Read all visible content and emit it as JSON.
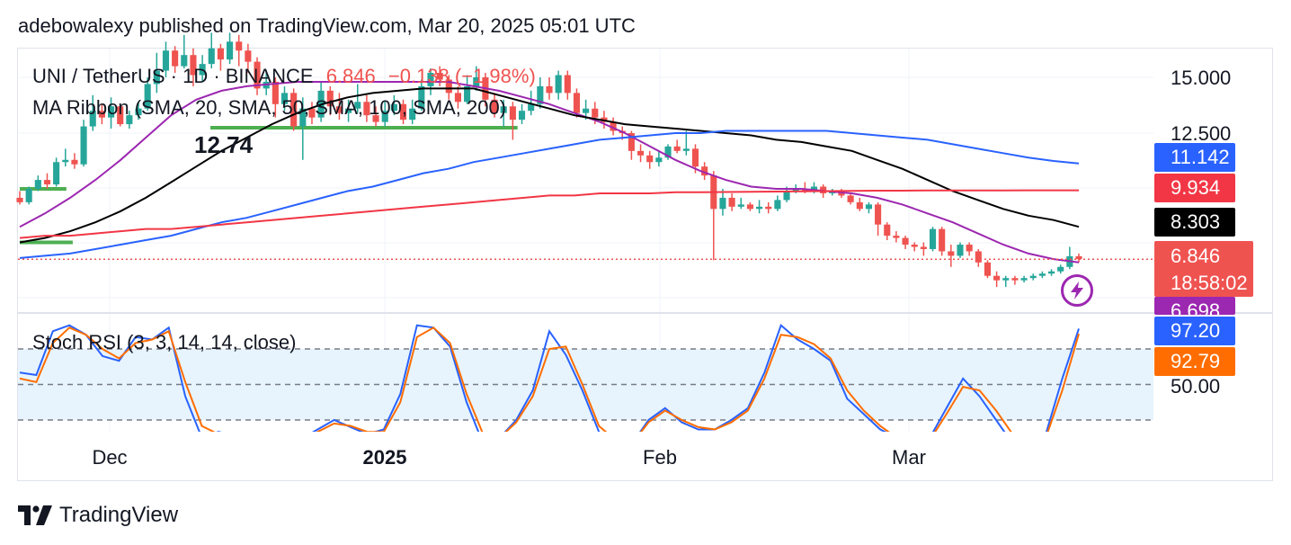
{
  "header": {
    "text": "adebowalexy published on TradingView.com, Mar 20, 2025 05:01 UTC"
  },
  "legend": {
    "symbol": "UNI / TetherUS · 1D · BINANCE",
    "price": "6.846",
    "change": "−0.138 (−1.98%)",
    "ma_ribbon": "MA Ribbon (SMA, 20, SMA, 50, SMA, 100, SMA, 200)",
    "stoch": "Stoch RSI (3, 3, 14, 14, close)"
  },
  "annotation": {
    "level_label": "12.74"
  },
  "price_axis": {
    "ticks": [
      "15.000",
      "12.500"
    ]
  },
  "badges": {
    "sma100": "11.142",
    "sma200": "9.934",
    "sma50": "8.303",
    "last_price": "6.846",
    "countdown": "18:58:02",
    "sma20": "6.698",
    "k": "97.20",
    "d": "92.79"
  },
  "rsi_axis": {
    "tick": "50.00"
  },
  "time_axis": {
    "labels": [
      "Dec",
      "2025",
      "Feb",
      "Mar"
    ]
  },
  "footer": {
    "brand": "TradingView",
    "logo_icon": "tradingview-logo-icon"
  },
  "colors": {
    "up": "#26a69a",
    "down": "#ef5350",
    "sma20": "#9c27b0",
    "sma50": "#000000",
    "sma100": "#2962ff",
    "sma200": "#f23645",
    "k_line": "#2962ff",
    "d_line": "#ff6d00",
    "support_line": "#4caf50"
  },
  "chart_data": [
    {
      "type": "candlestick",
      "title": "UNI / TetherUS · 1D · BINANCE",
      "price_range": [
        5.0,
        15.0
      ],
      "last_price": 6.846,
      "candles": [
        [
          9.6,
          9.4,
          9.9,
          9.3
        ],
        [
          9.4,
          10.0,
          10.1,
          9.3
        ],
        [
          10.0,
          10.4,
          10.6,
          9.9
        ],
        [
          10.4,
          10.2,
          10.7,
          10.0
        ],
        [
          10.2,
          11.2,
          11.4,
          10.1
        ],
        [
          11.2,
          11.3,
          11.8,
          11.0
        ],
        [
          11.3,
          11.1,
          11.6,
          10.9
        ],
        [
          11.1,
          12.8,
          13.1,
          11.0
        ],
        [
          12.8,
          13.5,
          14.2,
          12.6
        ],
        [
          13.5,
          13.2,
          13.8,
          12.9
        ],
        [
          13.2,
          13.7,
          14.1,
          12.7
        ],
        [
          13.7,
          12.9,
          13.8,
          12.8
        ],
        [
          12.9,
          13.3,
          13.5,
          12.7
        ],
        [
          13.3,
          13.6,
          13.9,
          13.1
        ],
        [
          13.6,
          14.7,
          15.0,
          13.5
        ],
        [
          14.7,
          15.3,
          16.1,
          14.3
        ],
        [
          15.3,
          16.2,
          16.6,
          15.0
        ],
        [
          16.2,
          15.5,
          16.4,
          15.2
        ],
        [
          15.5,
          16.0,
          16.9,
          15.4
        ],
        [
          16.0,
          15.1,
          16.3,
          14.6
        ],
        [
          15.1,
          15.6,
          16.0,
          14.8
        ],
        [
          15.6,
          16.3,
          17.0,
          15.4
        ],
        [
          16.3,
          15.8,
          16.5,
          15.3
        ],
        [
          15.8,
          16.6,
          17.0,
          15.6
        ],
        [
          16.6,
          16.2,
          16.9,
          15.5
        ],
        [
          16.2,
          15.7,
          16.5,
          15.2
        ],
        [
          15.7,
          14.5,
          15.9,
          14.2
        ],
        [
          14.5,
          14.8,
          15.3,
          14.2
        ],
        [
          14.8,
          13.8,
          15.0,
          13.2
        ],
        [
          13.8,
          14.3,
          14.6,
          13.5
        ],
        [
          14.3,
          12.8,
          14.5,
          12.6
        ],
        [
          12.8,
          13.6,
          14.1,
          11.3
        ],
        [
          13.6,
          13.2,
          13.9,
          12.9
        ],
        [
          13.2,
          14.4,
          14.8,
          13.0
        ],
        [
          14.4,
          13.7,
          14.6,
          13.3
        ],
        [
          13.7,
          13.4,
          14.3,
          13.1
        ],
        [
          13.4,
          13.6,
          14.0,
          13.0
        ],
        [
          13.6,
          13.9,
          14.7,
          13.4
        ],
        [
          13.9,
          13.3,
          14.2,
          13.0
        ],
        [
          13.3,
          13.0,
          13.7,
          12.8
        ],
        [
          13.0,
          13.5,
          13.9,
          12.8
        ],
        [
          13.5,
          13.8,
          14.2,
          13.3
        ],
        [
          13.8,
          13.1,
          14.0,
          12.9
        ],
        [
          13.1,
          13.6,
          14.0,
          12.9
        ],
        [
          13.6,
          14.6,
          14.9,
          13.5
        ],
        [
          14.6,
          15.2,
          15.4,
          14.2
        ],
        [
          15.2,
          14.9,
          15.5,
          14.6
        ],
        [
          14.9,
          14.3,
          15.1,
          14.0
        ],
        [
          14.3,
          13.9,
          14.6,
          13.6
        ],
        [
          13.9,
          14.6,
          15.1,
          13.8
        ],
        [
          14.6,
          15.0,
          15.5,
          14.4
        ],
        [
          15.0,
          14.0,
          15.2,
          13.7
        ],
        [
          14.0,
          13.4,
          14.3,
          13.2
        ],
        [
          13.4,
          13.7,
          14.0,
          12.8
        ],
        [
          13.7,
          13.1,
          13.9,
          12.2
        ],
        [
          13.1,
          13.5,
          13.8,
          12.9
        ],
        [
          13.5,
          13.8,
          14.4,
          13.3
        ],
        [
          13.8,
          14.6,
          15.0,
          13.6
        ],
        [
          14.6,
          14.3,
          15.0,
          14.0
        ],
        [
          14.3,
          15.1,
          15.3,
          14.0
        ],
        [
          15.1,
          14.3,
          15.3,
          14.0
        ],
        [
          14.3,
          13.4,
          14.5,
          13.2
        ],
        [
          13.4,
          13.6,
          14.0,
          13.1
        ],
        [
          13.6,
          13.2,
          13.9,
          12.9
        ],
        [
          13.2,
          13.0,
          13.5,
          12.7
        ],
        [
          13.0,
          12.6,
          13.2,
          12.4
        ],
        [
          12.6,
          12.5,
          12.8,
          12.2
        ],
        [
          12.5,
          11.7,
          12.6,
          11.3
        ],
        [
          11.7,
          11.5,
          12.0,
          11.2
        ],
        [
          11.5,
          11.2,
          11.7,
          10.9
        ],
        [
          11.2,
          11.4,
          11.7,
          11.0
        ],
        [
          11.4,
          11.9,
          12.0,
          11.3
        ],
        [
          11.9,
          11.7,
          12.2,
          11.6
        ],
        [
          11.7,
          11.8,
          12.6,
          11.5
        ],
        [
          11.8,
          11.0,
          12.0,
          10.7
        ],
        [
          11.0,
          10.6,
          11.2,
          10.4
        ],
        [
          10.6,
          9.1,
          10.8,
          6.8
        ],
        [
          9.1,
          9.6,
          10.0,
          8.8
        ],
        [
          9.6,
          9.2,
          9.8,
          9.0
        ],
        [
          9.2,
          9.3,
          9.6,
          9.1
        ],
        [
          9.3,
          9.1,
          9.4,
          9.0
        ],
        [
          9.1,
          9.2,
          9.5,
          8.9
        ],
        [
          9.2,
          9.1,
          9.4,
          8.9
        ],
        [
          9.1,
          9.5,
          9.7,
          9.0
        ],
        [
          9.5,
          9.9,
          10.1,
          9.4
        ],
        [
          9.9,
          10.0,
          10.2,
          9.8
        ],
        [
          10.0,
          9.9,
          10.3,
          9.8
        ],
        [
          9.9,
          10.1,
          10.3,
          9.8
        ],
        [
          10.1,
          9.8,
          10.2,
          9.6
        ],
        [
          9.8,
          9.9,
          10.0,
          9.7
        ],
        [
          9.9,
          9.7,
          10.0,
          9.6
        ],
        [
          9.7,
          9.4,
          9.8,
          9.3
        ],
        [
          9.4,
          9.1,
          9.6,
          9.0
        ],
        [
          9.1,
          9.3,
          9.4,
          8.9
        ],
        [
          9.3,
          8.4,
          9.4,
          7.9
        ],
        [
          8.4,
          7.9,
          8.5,
          7.7
        ],
        [
          7.9,
          7.8,
          8.1,
          7.6
        ],
        [
          7.8,
          7.5,
          7.9,
          7.3
        ],
        [
          7.5,
          7.4,
          7.6,
          7.2
        ],
        [
          7.4,
          7.3,
          7.6,
          7.0
        ],
        [
          7.3,
          8.2,
          8.3,
          7.2
        ],
        [
          8.2,
          7.2,
          8.3,
          7.0
        ],
        [
          7.2,
          7.0,
          7.5,
          6.5
        ],
        [
          7.0,
          7.5,
          7.6,
          6.9
        ],
        [
          7.5,
          7.2,
          7.6,
          7.0
        ],
        [
          7.2,
          6.7,
          7.3,
          6.5
        ],
        [
          6.7,
          6.1,
          6.8,
          6.0
        ],
        [
          6.1,
          5.9,
          6.3,
          5.6
        ],
        [
          5.9,
          6.0,
          6.1,
          5.6
        ],
        [
          6.0,
          5.9,
          6.1,
          5.7
        ],
        [
          5.9,
          6.0,
          6.1,
          5.8
        ],
        [
          6.0,
          6.1,
          6.2,
          5.9
        ],
        [
          6.1,
          6.2,
          6.3,
          6.0
        ],
        [
          6.2,
          6.3,
          6.4,
          6.1
        ],
        [
          6.3,
          6.5,
          6.6,
          6.2
        ],
        [
          6.5,
          6.98,
          7.4,
          6.4
        ],
        [
          6.98,
          6.846,
          7.1,
          6.7
        ]
      ],
      "series": [
        {
          "name": "SMA 20",
          "values": [
            8.3,
            8.9,
            9.6,
            10.4,
            11.3,
            12.3,
            13.3,
            14.0,
            14.4,
            14.6,
            14.7,
            14.8,
            14.8,
            14.8,
            14.8,
            14.8,
            14.8,
            14.8,
            14.6,
            14.4,
            14.1,
            13.8,
            13.4,
            13.0,
            12.5,
            11.9,
            11.3,
            10.8,
            10.4,
            10.1,
            10.0,
            10.0,
            9.9,
            9.8,
            9.6,
            9.3,
            8.9,
            8.5,
            8.0,
            7.5,
            7.1,
            6.85,
            6.7
          ]
        },
        {
          "name": "SMA 50",
          "values": [
            7.6,
            7.8,
            8.1,
            8.5,
            9.0,
            9.6,
            10.3,
            11.0,
            11.7,
            12.3,
            12.9,
            13.4,
            13.8,
            14.1,
            14.3,
            14.4,
            14.5,
            14.5,
            14.5,
            14.2,
            13.9,
            13.6,
            13.3,
            13.1,
            12.9,
            12.8,
            12.7,
            12.6,
            12.5,
            12.4,
            12.2,
            12.1,
            11.9,
            11.7,
            11.3,
            10.9,
            10.4,
            9.9,
            9.5,
            9.1,
            8.8,
            8.6,
            8.3
          ]
        },
        {
          "name": "SMA 100",
          "values": [
            6.9,
            7.0,
            7.1,
            7.3,
            7.5,
            7.7,
            7.9,
            8.2,
            8.5,
            8.7,
            9.0,
            9.3,
            9.6,
            9.9,
            10.1,
            10.4,
            10.7,
            10.9,
            11.2,
            11.4,
            11.6,
            11.8,
            12.0,
            12.2,
            12.3,
            12.4,
            12.5,
            12.5,
            12.6,
            12.6,
            12.6,
            12.6,
            12.6,
            12.5,
            12.4,
            12.3,
            12.2,
            12.0,
            11.8,
            11.6,
            11.4,
            11.25,
            11.14
          ]
        },
        {
          "name": "SMA 200",
          "values": [
            7.8,
            7.9,
            7.9,
            8.0,
            8.1,
            8.2,
            8.2,
            8.3,
            8.4,
            8.5,
            8.6,
            8.7,
            8.8,
            8.9,
            9.0,
            9.1,
            9.2,
            9.3,
            9.4,
            9.5,
            9.6,
            9.7,
            9.7,
            9.8,
            9.8,
            9.8,
            9.85,
            9.85,
            9.86,
            9.87,
            9.88,
            9.89,
            9.9,
            9.91,
            9.92,
            9.92,
            9.93,
            9.93,
            9.93,
            9.93,
            9.934,
            9.934,
            9.934
          ]
        }
      ],
      "support_levels": [
        {
          "label": "",
          "value": 10.0
        },
        {
          "label": "12.74",
          "value": 12.74
        },
        {
          "label": "",
          "value": 7.6
        }
      ],
      "xlabels": [
        "Dec",
        "2025",
        "Feb",
        "Mar"
      ]
    },
    {
      "type": "line",
      "title": "Stoch RSI (3, 3, 14, 14, close)",
      "ylim": [
        0,
        100
      ],
      "bands": [
        20,
        50,
        80
      ],
      "series": [
        {
          "name": "K",
          "values": [
            60,
            58,
            95,
            100,
            92,
            74,
            70,
            90,
            88,
            98,
            40,
            5,
            10,
            7,
            0,
            0,
            0,
            4,
            12,
            20,
            14,
            8,
            12,
            42,
            100,
            98,
            82,
            35,
            0,
            5,
            20,
            45,
            95,
            75,
            45,
            10,
            0,
            0,
            20,
            30,
            18,
            12,
            12,
            20,
            30,
            60,
            100,
            88,
            80,
            70,
            38,
            25,
            12,
            5,
            0,
            5,
            30,
            55,
            40,
            20,
            0,
            0,
            8,
            55,
            97.2
          ]
        },
        {
          "name": "D",
          "values": [
            55,
            52,
            85,
            98,
            92,
            80,
            72,
            85,
            88,
            95,
            52,
            15,
            8,
            8,
            3,
            0,
            0,
            3,
            10,
            17,
            15,
            10,
            10,
            35,
            90,
            98,
            85,
            42,
            8,
            5,
            18,
            40,
            80,
            82,
            50,
            15,
            3,
            0,
            18,
            28,
            20,
            14,
            12,
            18,
            28,
            55,
            92,
            90,
            84,
            72,
            45,
            28,
            15,
            5,
            0,
            3,
            25,
            48,
            45,
            28,
            8,
            0,
            5,
            45,
            92.79
          ]
        }
      ]
    }
  ]
}
